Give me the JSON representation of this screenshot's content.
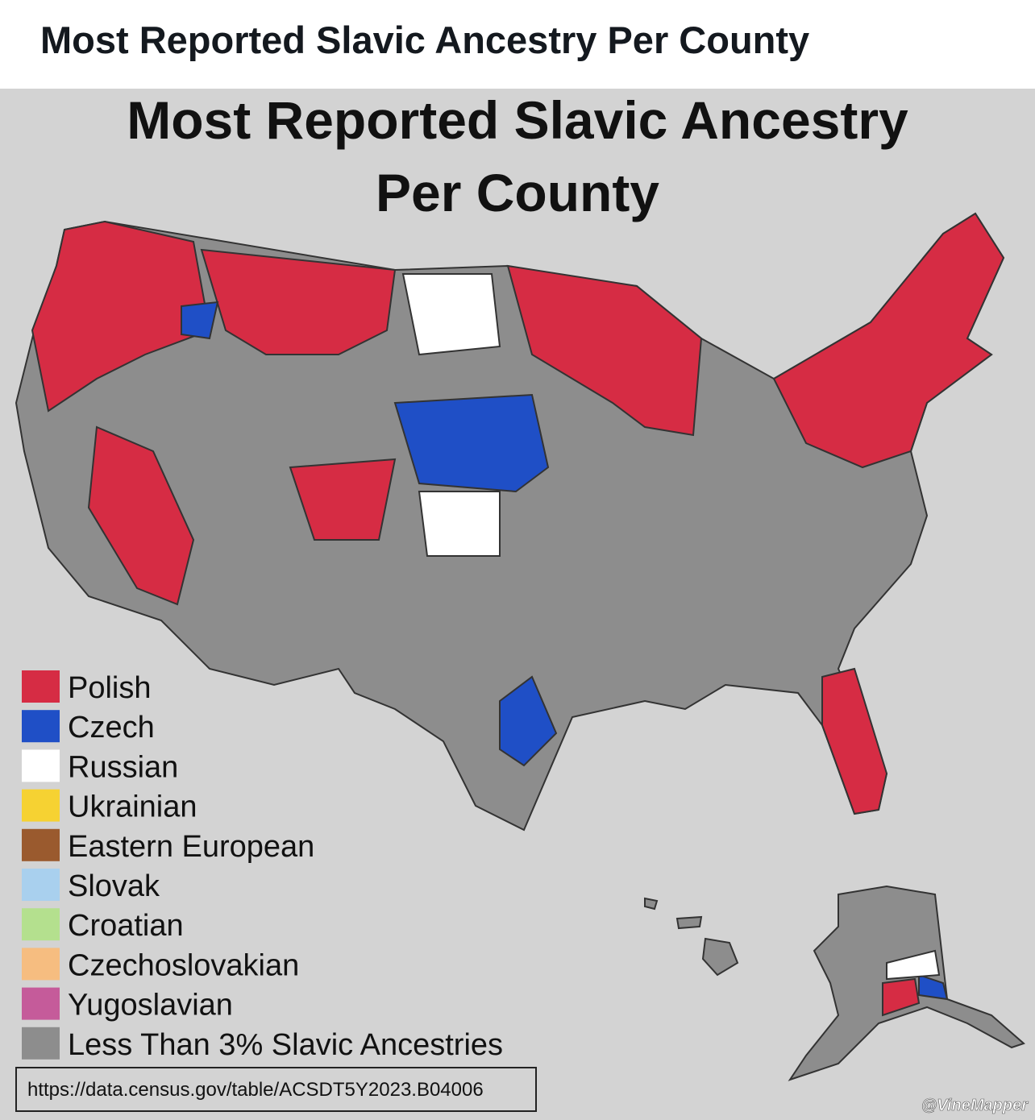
{
  "header": {
    "title": "Most Reported Slavic Ancestry Per County"
  },
  "map": {
    "title_lines": [
      "Most Reported Slavic Ancestry",
      "Per County"
    ],
    "legend": [
      {
        "label": "Polish",
        "color": "#d62c44"
      },
      {
        "label": "Czech",
        "color": "#1f4fc6"
      },
      {
        "label": "Russian",
        "color": "#ffffff"
      },
      {
        "label": "Ukrainian",
        "color": "#f6d232"
      },
      {
        "label": "Eastern European",
        "color": "#9a5a2e"
      },
      {
        "label": "Slovak",
        "color": "#a9d0ee"
      },
      {
        "label": "Croatian",
        "color": "#b4e08e"
      },
      {
        "label": "Czechoslovakian",
        "color": "#f6bd80"
      },
      {
        "label": "Yugoslavian",
        "color": "#c55b9a"
      },
      {
        "label": "Less Than 3% Slavic Ancestries",
        "color": "#8d8d8d"
      }
    ],
    "source": "https://data.census.gov/table/ACSDT5Y2023.B04006",
    "credit": "@VineMapper"
  }
}
